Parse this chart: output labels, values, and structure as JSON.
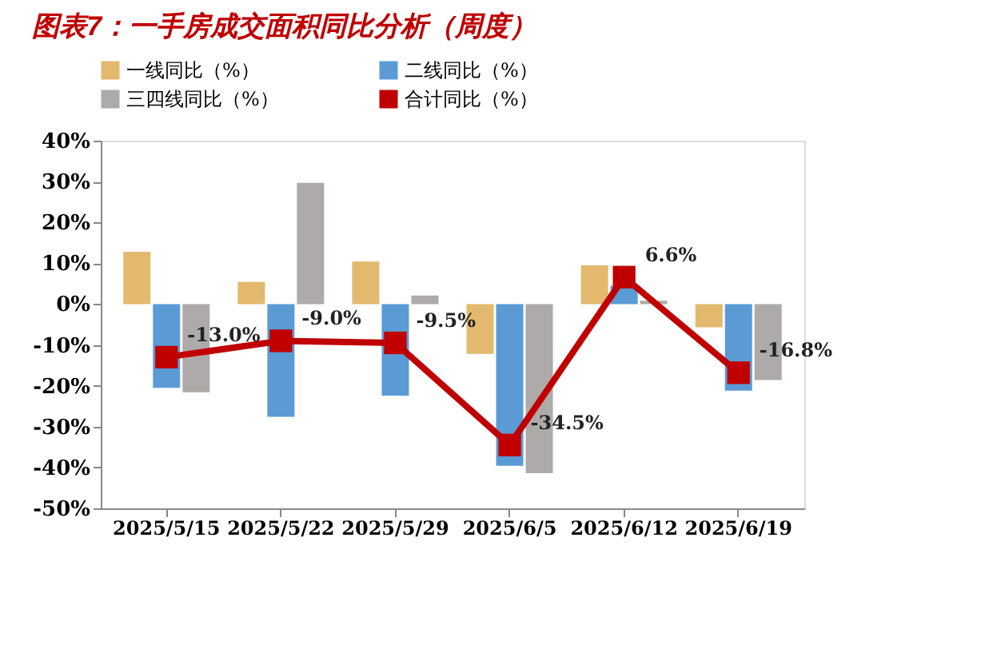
{
  "chart_data": {
    "type": "bar",
    "title": "图表7：一手房成交面积同比分析（周度）",
    "categories": [
      "2025/5/15",
      "2025/5/22",
      "2025/5/29",
      "2025/6/5",
      "2025/6/12",
      "2025/6/19"
    ],
    "series": [
      {
        "name": "一线同比（%）",
        "color": "#e2b96d",
        "values": [
          12.8,
          5.4,
          10.4,
          -12.2,
          9.5,
          -5.7
        ]
      },
      {
        "name": "二线同比（%）",
        "color": "#5b9bd5",
        "values": [
          -20.5,
          -27.6,
          -22.4,
          -39.6,
          4.5,
          -21.2
        ]
      },
      {
        "name": "三四线同比（%）",
        "color": "#aeaaaa",
        "values": [
          -21.6,
          29.7,
          2.1,
          -41.4,
          0.8,
          -18.6
        ]
      },
      {
        "name": "合计同比（%）",
        "color": "#c00000",
        "type": "line",
        "marker": "square",
        "values": [
          -13.0,
          -9.0,
          -9.5,
          -34.5,
          6.6,
          -16.8
        ],
        "value_labels": [
          "-13.0%",
          "-9.0%",
          "-9.5%",
          "-34.5%",
          "6.6%",
          "-16.8%"
        ]
      }
    ],
    "ylim": [
      -50,
      40
    ],
    "yticks": [
      {
        "value": -50,
        "label": "-50%"
      },
      {
        "value": -40,
        "label": "-40%"
      },
      {
        "value": -30,
        "label": "-30%"
      },
      {
        "value": -20,
        "label": "-20%"
      },
      {
        "value": -10,
        "label": "-10%"
      },
      {
        "value": 0,
        "label": "0%"
      },
      {
        "value": 10,
        "label": "10%"
      },
      {
        "value": 20,
        "label": "20%"
      },
      {
        "value": 30,
        "label": "30%"
      },
      {
        "value": 40,
        "label": "40%"
      }
    ],
    "grid": false,
    "legend": "top"
  }
}
